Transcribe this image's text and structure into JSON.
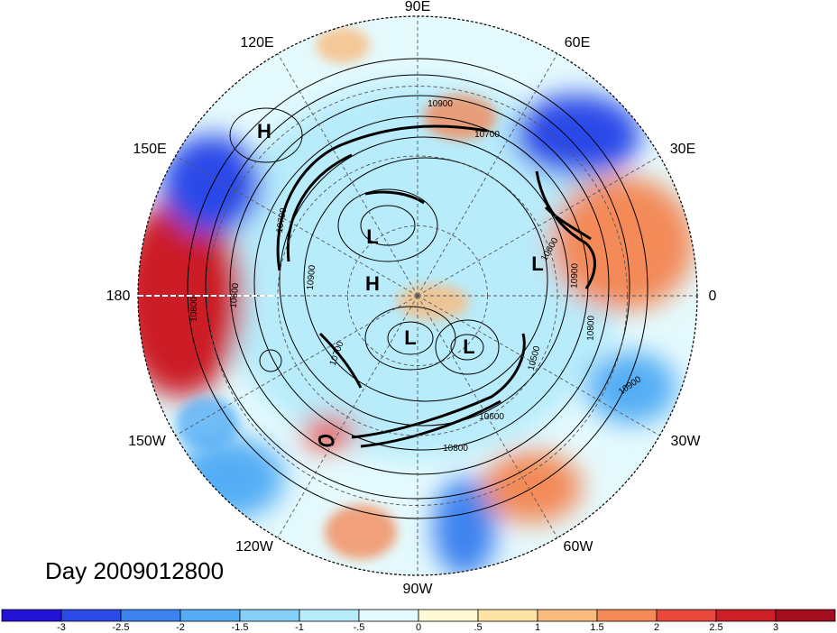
{
  "title": "Day 2009012800",
  "colors": {
    "background": "#ffffff",
    "land": "#fbf1d6",
    "grid": "#555555",
    "contour": "#000000",
    "dateline": "#ffffff"
  },
  "longitude_labels": [
    "90E",
    "60E",
    "30E",
    "0",
    "30W",
    "60W",
    "90W",
    "120W",
    "150W",
    "180",
    "150E",
    "120E"
  ],
  "markers": [
    {
      "type": "H",
      "id": "h-east-siberia"
    },
    {
      "type": "L",
      "id": "l-siberia"
    },
    {
      "type": "H",
      "id": "h-pole"
    },
    {
      "type": "L",
      "id": "l-europe"
    },
    {
      "type": "L",
      "id": "l-hudson"
    },
    {
      "type": "L",
      "id": "l-baffin"
    }
  ],
  "contour_labels": [
    "10900",
    "10700",
    "10700",
    "10900",
    "10600",
    "10800",
    "10900",
    "10800",
    "10500",
    "10600",
    "10800",
    "10900",
    "10600",
    "10700"
  ],
  "anomaly_patches": [
    {
      "id": "pacific-red",
      "value": 2.5
    },
    {
      "id": "siberia-blue",
      "value": -2.8
    },
    {
      "id": "russia-blue",
      "value": -2.6
    },
    {
      "id": "europe-red",
      "value": 1.8
    },
    {
      "id": "atlantic-blue",
      "value": -1.8
    },
    {
      "id": "southamerica-blue",
      "value": -2.4
    },
    {
      "id": "eastpacific-blue",
      "value": -2.0
    },
    {
      "id": "midatlantic-red",
      "value": 1.6
    },
    {
      "id": "arctic-light-blue",
      "value": -0.8
    },
    {
      "id": "alaska-red",
      "value": 2.2
    }
  ],
  "colorbar": {
    "colors": [
      "#2313d6",
      "#2b4ae8",
      "#3d83ef",
      "#55aef5",
      "#86d0f8",
      "#b8ecfb",
      "#e5fafd",
      "#fefad6",
      "#fde3a6",
      "#f9bb7e",
      "#f38a58",
      "#e8493c",
      "#cc1f27",
      "#a30d1e"
    ],
    "ticks": [
      "-3",
      "-2.5",
      "-2",
      "-1.5",
      "-1",
      "-.5",
      "0",
      ".5",
      "1",
      "1.5",
      "2",
      "2.5",
      "3"
    ]
  }
}
